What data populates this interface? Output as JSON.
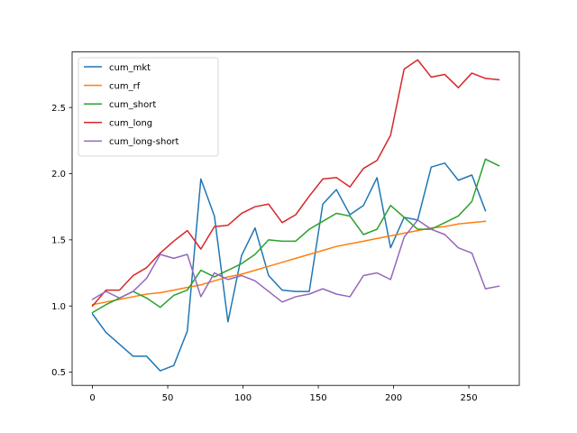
{
  "chart_data": {
    "type": "line",
    "title": "",
    "xlabel": "",
    "ylabel": "",
    "xlim": [
      -13.5,
      283.5
    ],
    "ylim": [
      0.4,
      2.92
    ],
    "xticks": [
      0,
      50,
      100,
      150,
      200,
      250
    ],
    "yticks": [
      0.5,
      1.0,
      1.5,
      2.0,
      2.5
    ],
    "xtick_labels": [
      "0",
      "50",
      "100",
      "150",
      "200",
      "250"
    ],
    "ytick_labels": [
      "0.5",
      "1.0",
      "1.5",
      "2.0",
      "2.5"
    ],
    "grid": false,
    "legend_position": "top-left",
    "series": [
      {
        "name": "cum_mkt",
        "color": "#1f77b4",
        "x": [
          0,
          9,
          18,
          27,
          36,
          45,
          54,
          63,
          72,
          81,
          90,
          99,
          108,
          117,
          126,
          135,
          144,
          153,
          162,
          171,
          180,
          189,
          198,
          207,
          216,
          225,
          234,
          243,
          252,
          261
        ],
        "y": [
          0.94,
          0.8,
          0.71,
          0.62,
          0.62,
          0.51,
          0.55,
          0.81,
          1.96,
          1.68,
          0.88,
          1.38,
          1.59,
          1.23,
          1.12,
          1.11,
          1.11,
          1.77,
          1.88,
          1.69,
          1.76,
          1.97,
          1.44,
          1.67,
          1.65,
          2.05,
          2.08,
          1.95,
          1.99,
          1.72
        ]
      },
      {
        "name": "cum_rf",
        "color": "#ff7f0e",
        "x": [
          0,
          9,
          18,
          27,
          36,
          45,
          54,
          63,
          72,
          81,
          90,
          99,
          108,
          117,
          126,
          135,
          144,
          153,
          162,
          171,
          180,
          189,
          198,
          207,
          216,
          225,
          234,
          243,
          252,
          261
        ],
        "y": [
          1.01,
          1.03,
          1.05,
          1.07,
          1.09,
          1.1,
          1.12,
          1.14,
          1.16,
          1.19,
          1.22,
          1.24,
          1.27,
          1.3,
          1.33,
          1.36,
          1.39,
          1.42,
          1.45,
          1.47,
          1.49,
          1.51,
          1.53,
          1.55,
          1.57,
          1.59,
          1.6,
          1.62,
          1.63,
          1.64
        ]
      },
      {
        "name": "cum_short",
        "color": "#2ca02c",
        "x": [
          0,
          9,
          18,
          27,
          36,
          45,
          54,
          63,
          72,
          81,
          90,
          99,
          108,
          117,
          126,
          135,
          144,
          153,
          162,
          171,
          180,
          189,
          198,
          207,
          216,
          225,
          234,
          243,
          252,
          261,
          270
        ],
        "y": [
          0.95,
          1.01,
          1.06,
          1.11,
          1.06,
          0.99,
          1.08,
          1.12,
          1.27,
          1.22,
          1.27,
          1.32,
          1.39,
          1.5,
          1.49,
          1.49,
          1.58,
          1.64,
          1.7,
          1.68,
          1.54,
          1.58,
          1.76,
          1.67,
          1.58,
          1.58,
          1.63,
          1.68,
          1.79,
          2.11,
          2.06
        ]
      },
      {
        "name": "cum_long",
        "color": "#d62728",
        "x": [
          0,
          9,
          18,
          27,
          36,
          45,
          54,
          63,
          72,
          81,
          90,
          99,
          108,
          117,
          126,
          135,
          144,
          153,
          162,
          171,
          180,
          189,
          198,
          207,
          216,
          225,
          234,
          243,
          252,
          261,
          270
        ],
        "y": [
          1.0,
          1.12,
          1.12,
          1.23,
          1.29,
          1.4,
          1.49,
          1.57,
          1.43,
          1.6,
          1.61,
          1.7,
          1.75,
          1.77,
          1.63,
          1.69,
          1.83,
          1.96,
          1.97,
          1.9,
          2.04,
          2.1,
          2.29,
          2.79,
          2.86,
          2.73,
          2.75,
          2.65,
          2.76,
          2.72,
          2.71
        ]
      },
      {
        "name": "cum_long-short",
        "color": "#9467bd",
        "x": [
          0,
          9,
          18,
          27,
          36,
          45,
          54,
          63,
          72,
          81,
          90,
          99,
          108,
          117,
          126,
          135,
          144,
          153,
          162,
          171,
          180,
          189,
          198,
          207,
          216,
          225,
          234,
          243,
          252,
          261,
          270
        ],
        "y": [
          1.05,
          1.11,
          1.06,
          1.11,
          1.21,
          1.39,
          1.36,
          1.39,
          1.07,
          1.25,
          1.2,
          1.23,
          1.19,
          1.11,
          1.03,
          1.07,
          1.09,
          1.13,
          1.09,
          1.07,
          1.23,
          1.25,
          1.2,
          1.52,
          1.65,
          1.58,
          1.54,
          1.44,
          1.4,
          1.13,
          1.15
        ]
      }
    ]
  }
}
